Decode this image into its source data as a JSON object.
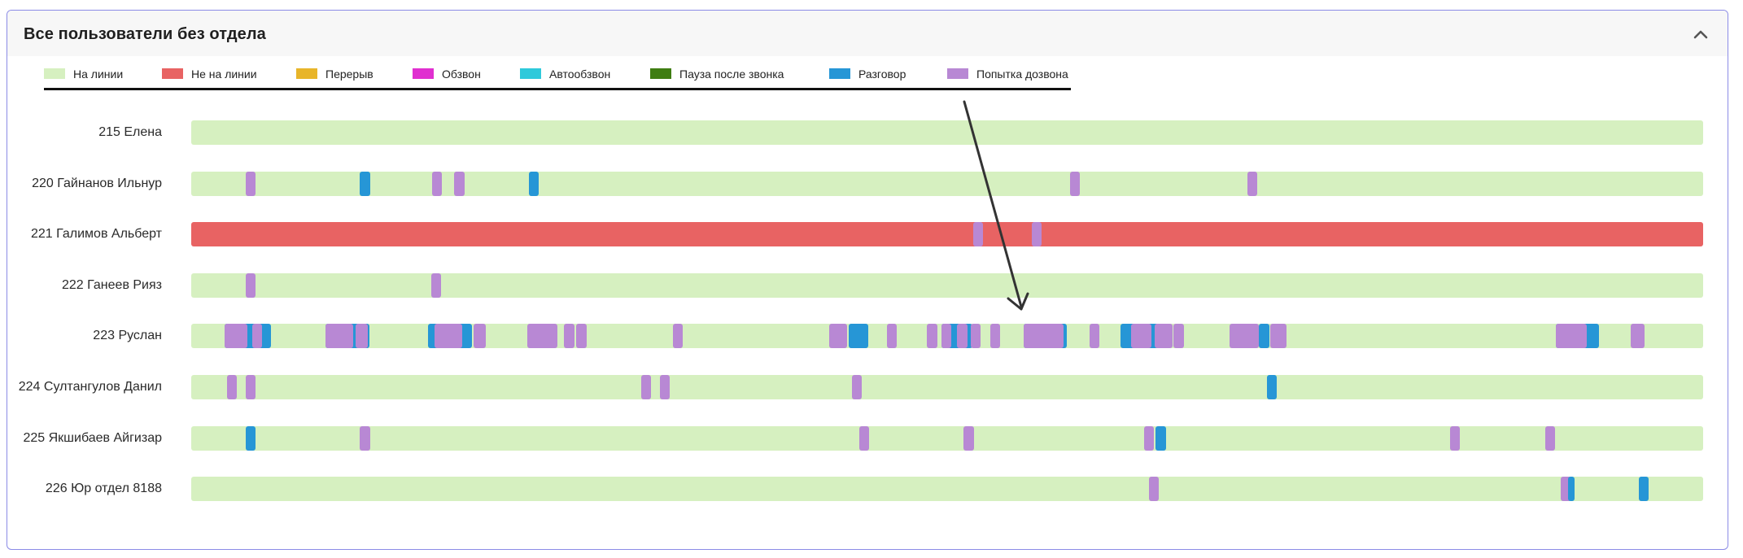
{
  "panel": {
    "title": "Все пользователи без отдела"
  },
  "legend": [
    {
      "key": "online",
      "label": "На линии",
      "color": "#d6f0c0"
    },
    {
      "key": "offline",
      "label": "Не на линии",
      "color": "#e86363"
    },
    {
      "key": "break",
      "label": "Перерыв",
      "color": "#e8b52a"
    },
    {
      "key": "calling",
      "label": "Обзвон",
      "color": "#e02fd0"
    },
    {
      "key": "auto",
      "label": "Автообзвон",
      "color": "#2ec9db"
    },
    {
      "key": "pause",
      "label": "Пауза после звонка",
      "color": "#3f7d12"
    },
    {
      "key": "talk",
      "label": "Разговор",
      "color": "#2696d6"
    },
    {
      "key": "attempt",
      "label": "Попытка дозвона",
      "color": "#b888d4"
    }
  ],
  "rows": [
    {
      "label": "215 Елена",
      "base": "online",
      "segments": []
    },
    {
      "label": "220 Гайнанов Ильнур",
      "base": "online",
      "segments": [
        [
          "attempt",
          0.0358,
          0.0066
        ],
        [
          "talk",
          0.1116,
          0.0066
        ],
        [
          "attempt",
          0.1594,
          0.0066
        ],
        [
          "attempt",
          0.1741,
          0.0066
        ],
        [
          "talk",
          0.2233,
          0.0066
        ],
        [
          "attempt",
          0.5811,
          0.0066
        ],
        [
          "attempt",
          0.6986,
          0.0066
        ]
      ]
    },
    {
      "label": "221 Галимов Альберт",
      "base": "offline",
      "segments": [
        [
          "attempt",
          0.5171,
          0.0066
        ],
        [
          "attempt",
          0.556,
          0.0066
        ]
      ]
    },
    {
      "label": "222 Ганеев Рияз",
      "base": "online",
      "segments": [
        [
          "attempt",
          0.0358,
          0.0066
        ],
        [
          "attempt",
          0.1587,
          0.0066
        ]
      ]
    },
    {
      "label": "223 Руслан",
      "base": "online",
      "segments": [
        [
          "talk",
          0.022,
          0.0305
        ],
        [
          "attempt",
          0.022,
          0.015
        ],
        [
          "attempt",
          0.0404,
          0.0066
        ],
        [
          "talk",
          0.0889,
          0.029
        ],
        [
          "attempt",
          0.0889,
          0.0184
        ],
        [
          "attempt",
          0.1087,
          0.008
        ],
        [
          "talk",
          0.1565,
          0.029
        ],
        [
          "attempt",
          0.1609,
          0.0184
        ],
        [
          "attempt",
          0.1866,
          0.008
        ],
        [
          "attempt",
          0.2225,
          0.0198
        ],
        [
          "attempt",
          0.2467,
          0.0066
        ],
        [
          "attempt",
          0.2548,
          0.0066
        ],
        [
          "attempt",
          0.3187,
          0.0066
        ],
        [
          "attempt",
          0.4222,
          0.0118
        ],
        [
          "talk",
          0.4347,
          0.0132
        ],
        [
          "attempt",
          0.4603,
          0.0066
        ],
        [
          "attempt",
          0.4868,
          0.0066
        ],
        [
          "talk",
          0.4963,
          0.0205
        ],
        [
          "attempt",
          0.4963,
          0.0066
        ],
        [
          "attempt",
          0.5066,
          0.0066
        ],
        [
          "attempt",
          0.5154,
          0.0066
        ],
        [
          "attempt",
          0.5286,
          0.0066
        ],
        [
          "talk",
          0.5507,
          0.0286
        ],
        [
          "attempt",
          0.5507,
          0.0264
        ],
        [
          "attempt",
          0.594,
          0.0066
        ],
        [
          "talk",
          0.6145,
          0.0286
        ],
        [
          "attempt",
          0.6219,
          0.0132
        ],
        [
          "attempt",
          0.6373,
          0.0118
        ],
        [
          "attempt",
          0.6498,
          0.0066
        ],
        [
          "attempt",
          0.6865,
          0.0198
        ],
        [
          "talk",
          0.7063,
          0.0066
        ],
        [
          "attempt",
          0.7136,
          0.011
        ],
        [
          "talk",
          0.9024,
          0.0286
        ],
        [
          "attempt",
          0.9024,
          0.0205
        ],
        [
          "attempt",
          0.9523,
          0.0088
        ]
      ]
    },
    {
      "label": "224 Султангулов Данил",
      "base": "online",
      "segments": [
        [
          "attempt",
          0.0235,
          0.0066
        ],
        [
          "attempt",
          0.0358,
          0.0066
        ],
        [
          "attempt",
          0.2974,
          0.0066
        ],
        [
          "attempt",
          0.3099,
          0.0066
        ],
        [
          "attempt",
          0.4369,
          0.0066
        ],
        [
          "talk",
          0.7114,
          0.0066
        ]
      ]
    },
    {
      "label": "225 Якшибаев Айгизар",
      "base": "online",
      "segments": [
        [
          "talk",
          0.0358,
          0.0066
        ],
        [
          "attempt",
          0.1116,
          0.0066
        ],
        [
          "attempt",
          0.442,
          0.0066
        ],
        [
          "attempt",
          0.511,
          0.0066
        ],
        [
          "attempt",
          0.63,
          0.0066
        ],
        [
          "talk",
          0.638,
          0.0066
        ],
        [
          "attempt",
          0.8326,
          0.0066
        ],
        [
          "attempt",
          0.8957,
          0.0066
        ]
      ]
    },
    {
      "label": "226 Юр отдел 8188",
      "base": "online",
      "segments": [
        [
          "attempt",
          0.6336,
          0.0066
        ],
        [
          "attempt",
          0.906,
          0.0066
        ],
        [
          "talk",
          0.9105,
          0.0044
        ],
        [
          "talk",
          0.9574,
          0.0066
        ]
      ]
    }
  ]
}
